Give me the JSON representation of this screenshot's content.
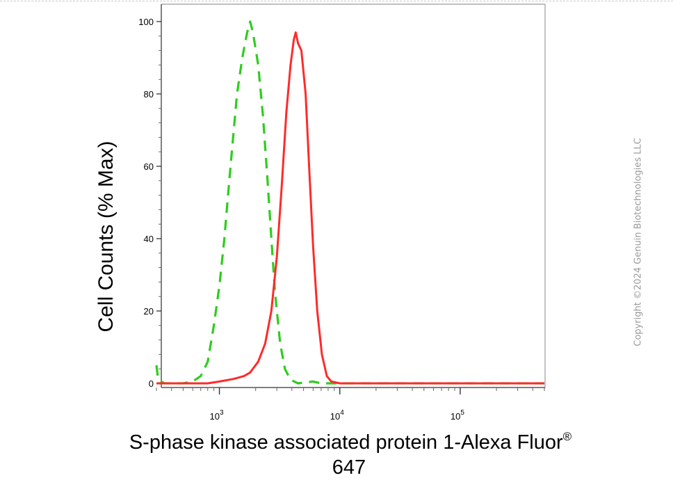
{
  "chart_data": {
    "type": "line",
    "xlabel": "S-phase kinase associated protein 1-Alexa Fluor",
    "xlabel_superscript": "®",
    "xlabel_line2": "647",
    "ylabel": "Cell Counts (% Max)",
    "x_scale": "log",
    "xlim": [
      300,
      500000
    ],
    "ylim": [
      0,
      105
    ],
    "x_ticks": [
      {
        "value": 1000,
        "base": "10",
        "exp": "3"
      },
      {
        "value": 10000,
        "base": "10",
        "exp": "4"
      },
      {
        "value": 100000,
        "base": "10",
        "exp": "5"
      }
    ],
    "y_ticks": [
      0,
      20,
      40,
      60,
      80,
      100
    ],
    "grid": false,
    "series": [
      {
        "color": "#2ecc1e",
        "line_style": "dashed",
        "points": [
          [
            300,
            5
          ],
          [
            310,
            1
          ],
          [
            350,
            0
          ],
          [
            500,
            0
          ],
          [
            600,
            0.5
          ],
          [
            700,
            2
          ],
          [
            800,
            6
          ],
          [
            900,
            16
          ],
          [
            1000,
            27
          ],
          [
            1100,
            40
          ],
          [
            1200,
            55
          ],
          [
            1300,
            68
          ],
          [
            1400,
            80
          ],
          [
            1550,
            90
          ],
          [
            1700,
            97
          ],
          [
            1800,
            100
          ],
          [
            1900,
            97
          ],
          [
            2100,
            88
          ],
          [
            2300,
            74
          ],
          [
            2500,
            57
          ],
          [
            2700,
            40
          ],
          [
            2900,
            25
          ],
          [
            3200,
            11
          ],
          [
            3500,
            4
          ],
          [
            3900,
            1
          ],
          [
            4500,
            0
          ],
          [
            6000,
            0.5
          ],
          [
            7000,
            0
          ],
          [
            500000,
            0
          ]
        ]
      },
      {
        "color": "#ff2a2a",
        "line_style": "solid",
        "points": [
          [
            300,
            0
          ],
          [
            800,
            0
          ],
          [
            1000,
            0.5
          ],
          [
            1300,
            1.2
          ],
          [
            1600,
            2
          ],
          [
            1800,
            3
          ],
          [
            2100,
            6
          ],
          [
            2400,
            11
          ],
          [
            2700,
            20
          ],
          [
            3000,
            35
          ],
          [
            3300,
            55
          ],
          [
            3600,
            75
          ],
          [
            3900,
            88
          ],
          [
            4150,
            95
          ],
          [
            4300,
            97
          ],
          [
            4500,
            94
          ],
          [
            4800,
            92
          ],
          [
            5200,
            80
          ],
          [
            5600,
            58
          ],
          [
            6000,
            38
          ],
          [
            6500,
            20
          ],
          [
            7100,
            8
          ],
          [
            7800,
            2
          ],
          [
            8500,
            0.5
          ],
          [
            10000,
            0
          ],
          [
            500000,
            0
          ]
        ]
      }
    ]
  },
  "watermark": "Copyright ©2024 Genuin Biotechnologies LLC"
}
